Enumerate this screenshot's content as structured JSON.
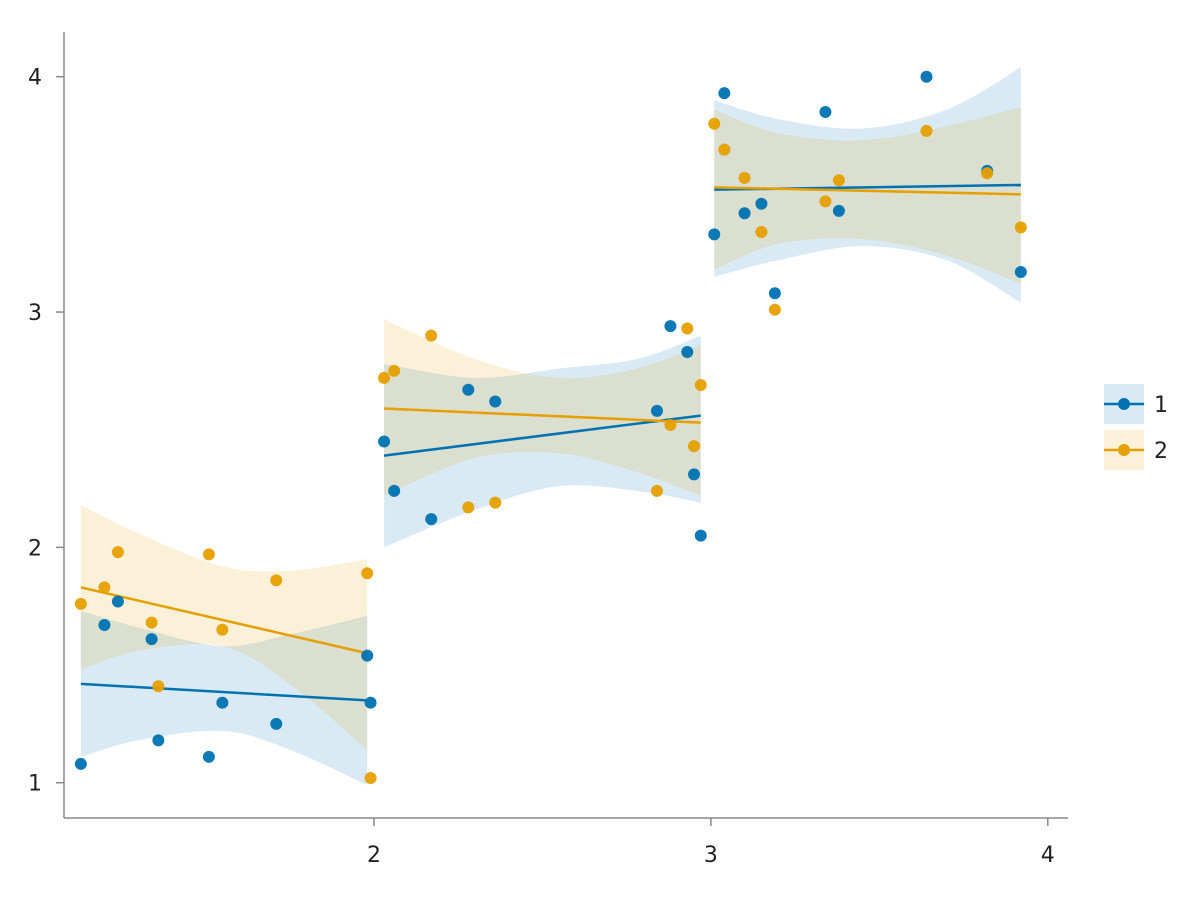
{
  "chart_data": {
    "type": "scatter",
    "title": "",
    "xlabel": "",
    "ylabel": "",
    "xlim": [
      1.08,
      4.06
    ],
    "ylim": [
      0.85,
      4.19
    ],
    "x_ticks": [
      2,
      3,
      4
    ],
    "y_ticks": [
      1,
      2,
      3,
      4
    ],
    "x_tick_labels": [
      "2",
      "3",
      "4"
    ],
    "y_tick_labels": [
      "1",
      "2",
      "3",
      "4"
    ],
    "grid": false,
    "legend_position": "right",
    "colors": {
      "1": "#0072b2",
      "2": "#e69f00"
    },
    "series": [
      {
        "name": "1",
        "color": "#0072b2",
        "points": [
          {
            "x": 1.13,
            "y": 1.08
          },
          {
            "x": 1.2,
            "y": 1.67
          },
          {
            "x": 1.24,
            "y": 1.77
          },
          {
            "x": 1.34,
            "y": 1.61
          },
          {
            "x": 1.36,
            "y": 1.18
          },
          {
            "x": 1.51,
            "y": 1.11
          },
          {
            "x": 1.55,
            "y": 1.34
          },
          {
            "x": 1.71,
            "y": 1.25
          },
          {
            "x": 1.98,
            "y": 1.54
          },
          {
            "x": 1.99,
            "y": 1.34
          },
          {
            "x": 2.03,
            "y": 2.45
          },
          {
            "x": 2.06,
            "y": 2.24
          },
          {
            "x": 2.17,
            "y": 2.12
          },
          {
            "x": 2.28,
            "y": 2.67
          },
          {
            "x": 2.36,
            "y": 2.62
          },
          {
            "x": 2.84,
            "y": 2.58
          },
          {
            "x": 2.88,
            "y": 2.94
          },
          {
            "x": 2.93,
            "y": 2.83
          },
          {
            "x": 2.95,
            "y": 2.31
          },
          {
            "x": 2.97,
            "y": 2.05
          },
          {
            "x": 3.01,
            "y": 3.33
          },
          {
            "x": 3.04,
            "y": 3.93
          },
          {
            "x": 3.1,
            "y": 3.42
          },
          {
            "x": 3.15,
            "y": 3.46
          },
          {
            "x": 3.19,
            "y": 3.08
          },
          {
            "x": 3.34,
            "y": 3.85
          },
          {
            "x": 3.38,
            "y": 3.43
          },
          {
            "x": 3.64,
            "y": 4.0
          },
          {
            "x": 3.82,
            "y": 3.6
          },
          {
            "x": 3.92,
            "y": 3.17
          }
        ],
        "fit_segments": [
          {
            "x": [
              1.13,
              1.98
            ],
            "y": [
              1.42,
              1.35
            ],
            "band_lower": [
              [
                1.13,
                1.11
              ],
              [
                1.3,
                1.18
              ],
              [
                1.55,
                1.22
              ],
              [
                1.75,
                1.14
              ],
              [
                1.98,
                0.99
              ]
            ],
            "band_upper": [
              [
                1.13,
                1.73
              ],
              [
                1.3,
                1.66
              ],
              [
                1.55,
                1.58
              ],
              [
                1.75,
                1.63
              ],
              [
                1.98,
                1.71
              ]
            ]
          },
          {
            "x": [
              2.03,
              2.97
            ],
            "y": [
              2.39,
              2.56
            ],
            "band_lower": [
              [
                2.03,
                2.0
              ],
              [
                2.3,
                2.16
              ],
              [
                2.55,
                2.26
              ],
              [
                2.78,
                2.24
              ],
              [
                2.97,
                2.19
              ]
            ],
            "band_upper": [
              [
                2.03,
                2.78
              ],
              [
                2.3,
                2.72
              ],
              [
                2.55,
                2.76
              ],
              [
                2.78,
                2.8
              ],
              [
                2.97,
                2.9
              ]
            ]
          },
          {
            "x": [
              3.01,
              3.92
            ],
            "y": [
              3.52,
              3.54
            ],
            "band_lower": [
              [
                3.01,
                3.15
              ],
              [
                3.2,
                3.22
              ],
              [
                3.45,
                3.28
              ],
              [
                3.7,
                3.22
              ],
              [
                3.92,
                3.04
              ]
            ],
            "band_upper": [
              [
                3.01,
                3.9
              ],
              [
                3.2,
                3.82
              ],
              [
                3.45,
                3.78
              ],
              [
                3.7,
                3.86
              ],
              [
                3.92,
                4.04
              ]
            ]
          }
        ]
      },
      {
        "name": "2",
        "color": "#e69f00",
        "points": [
          {
            "x": 1.13,
            "y": 1.76
          },
          {
            "x": 1.2,
            "y": 1.83
          },
          {
            "x": 1.24,
            "y": 1.98
          },
          {
            "x": 1.34,
            "y": 1.68
          },
          {
            "x": 1.36,
            "y": 1.41
          },
          {
            "x": 1.51,
            "y": 1.97
          },
          {
            "x": 1.55,
            "y": 1.65
          },
          {
            "x": 1.71,
            "y": 1.86
          },
          {
            "x": 1.98,
            "y": 1.89
          },
          {
            "x": 1.99,
            "y": 1.02
          },
          {
            "x": 2.03,
            "y": 2.72
          },
          {
            "x": 2.06,
            "y": 2.75
          },
          {
            "x": 2.17,
            "y": 2.9
          },
          {
            "x": 2.28,
            "y": 2.17
          },
          {
            "x": 2.36,
            "y": 2.19
          },
          {
            "x": 2.84,
            "y": 2.24
          },
          {
            "x": 2.88,
            "y": 2.52
          },
          {
            "x": 2.93,
            "y": 2.93
          },
          {
            "x": 2.95,
            "y": 2.43
          },
          {
            "x": 2.97,
            "y": 2.69
          },
          {
            "x": 3.01,
            "y": 3.8
          },
          {
            "x": 3.04,
            "y": 3.69
          },
          {
            "x": 3.1,
            "y": 3.57
          },
          {
            "x": 3.15,
            "y": 3.34
          },
          {
            "x": 3.19,
            "y": 3.01
          },
          {
            "x": 3.34,
            "y": 3.47
          },
          {
            "x": 3.38,
            "y": 3.56
          },
          {
            "x": 3.64,
            "y": 3.77
          },
          {
            "x": 3.82,
            "y": 3.59
          },
          {
            "x": 3.92,
            "y": 3.36
          }
        ],
        "fit_segments": [
          {
            "x": [
              1.13,
              1.98
            ],
            "y": [
              1.83,
              1.55
            ],
            "band_lower": [
              [
                1.13,
                1.48
              ],
              [
                1.3,
                1.56
              ],
              [
                1.55,
                1.58
              ],
              [
                1.75,
                1.42
              ],
              [
                1.98,
                1.14
              ]
            ],
            "band_upper": [
              [
                1.13,
                2.18
              ],
              [
                1.3,
                2.06
              ],
              [
                1.55,
                1.92
              ],
              [
                1.75,
                1.9
              ],
              [
                1.98,
                1.95
              ]
            ]
          },
          {
            "x": [
              2.03,
              2.97
            ],
            "y": [
              2.59,
              2.53
            ],
            "band_lower": [
              [
                2.03,
                2.22
              ],
              [
                2.3,
                2.38
              ],
              [
                2.55,
                2.4
              ],
              [
                2.78,
                2.32
              ],
              [
                2.97,
                2.22
              ]
            ],
            "band_upper": [
              [
                2.03,
                2.97
              ],
              [
                2.3,
                2.8
              ],
              [
                2.55,
                2.72
              ],
              [
                2.78,
                2.76
              ],
              [
                2.97,
                2.86
              ]
            ]
          },
          {
            "x": [
              3.01,
              3.92
            ],
            "y": [
              3.53,
              3.5
            ],
            "band_lower": [
              [
                3.01,
                3.18
              ],
              [
                3.2,
                3.29
              ],
              [
                3.45,
                3.31
              ],
              [
                3.7,
                3.24
              ],
              [
                3.92,
                3.12
              ]
            ],
            "band_upper": [
              [
                3.01,
                3.86
              ],
              [
                3.2,
                3.76
              ],
              [
                3.45,
                3.73
              ],
              [
                3.7,
                3.79
              ],
              [
                3.92,
                3.87
              ]
            ]
          }
        ]
      }
    ]
  }
}
